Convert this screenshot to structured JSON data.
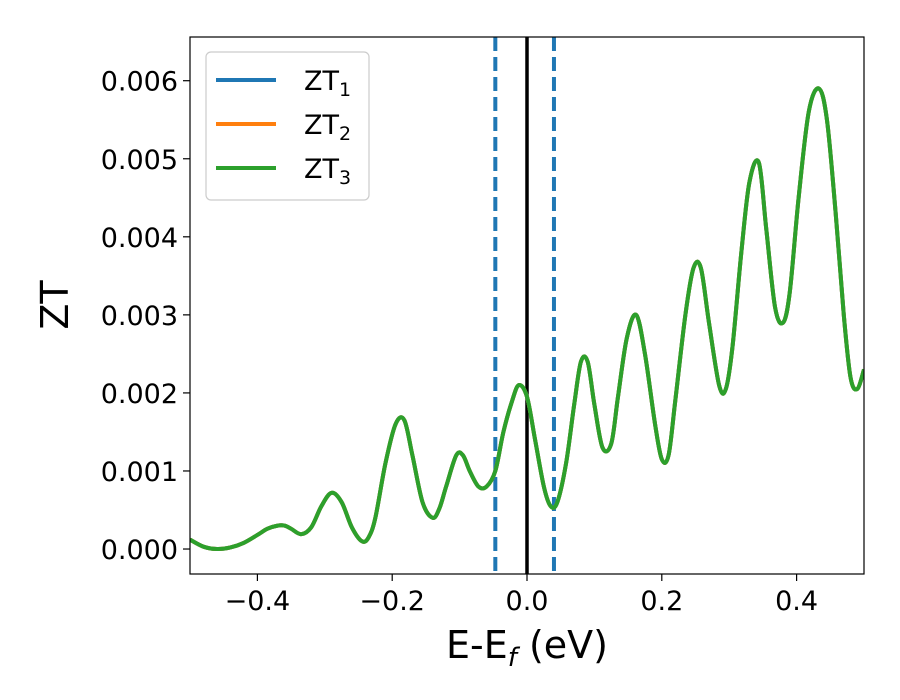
{
  "chart_data": {
    "type": "line",
    "xlabel": "E-E",
    "xlabel_sub": "f",
    "xlabel_unit": " (eV)",
    "ylabel": "ZT",
    "xlim": [
      -0.5,
      0.5
    ],
    "ylim": [
      -0.00032,
      0.00656
    ],
    "x_ticks": [
      -0.4,
      -0.2,
      0.0,
      0.2,
      0.4
    ],
    "x_tick_labels": [
      "−0.4",
      "−0.2",
      "0.0",
      "0.2",
      "0.4"
    ],
    "y_ticks": [
      0.0,
      0.001,
      0.002,
      0.003,
      0.004,
      0.005,
      0.006
    ],
    "y_tick_labels": [
      "0.000",
      "0.001",
      "0.002",
      "0.003",
      "0.004",
      "0.005",
      "0.006"
    ],
    "grid": false,
    "legend_position": "upper-left",
    "colors": {
      "series1": "#1f77b4",
      "series2": "#ff7f0e",
      "series3": "#2ca02c",
      "fermi_line": "#000000",
      "window_lines": "#1f77b4"
    },
    "vlines": [
      {
        "x": -0.047,
        "style": "dashed",
        "color": "#1f77b4"
      },
      {
        "x": 0.0,
        "style": "solid",
        "color": "#000000"
      },
      {
        "x": 0.04,
        "style": "dashed",
        "color": "#1f77b4"
      }
    ],
    "series": [
      {
        "name": "ZT",
        "sub": "1",
        "color": "#1f77b4"
      },
      {
        "name": "ZT",
        "sub": "2",
        "color": "#ff7f0e"
      },
      {
        "name": "ZT",
        "sub": "3",
        "color": "#2ca02c"
      }
    ],
    "x": [
      -0.5,
      -0.48,
      -0.46,
      -0.44,
      -0.42,
      -0.4,
      -0.385,
      -0.37,
      -0.36,
      -0.35,
      -0.335,
      -0.32,
      -0.305,
      -0.29,
      -0.275,
      -0.26,
      -0.245,
      -0.235,
      -0.225,
      -0.21,
      -0.195,
      -0.182,
      -0.17,
      -0.155,
      -0.14,
      -0.13,
      -0.12,
      -0.105,
      -0.095,
      -0.085,
      -0.072,
      -0.06,
      -0.047,
      -0.035,
      -0.022,
      -0.012,
      0.0,
      0.012,
      0.025,
      0.035,
      0.045,
      0.058,
      0.07,
      0.08,
      0.09,
      0.1,
      0.112,
      0.125,
      0.135,
      0.148,
      0.162,
      0.175,
      0.19,
      0.2,
      0.21,
      0.22,
      0.235,
      0.247,
      0.258,
      0.27,
      0.285,
      0.295,
      0.305,
      0.318,
      0.33,
      0.344,
      0.355,
      0.368,
      0.38,
      0.39,
      0.403,
      0.418,
      0.433,
      0.445,
      0.458,
      0.47,
      0.48,
      0.49,
      0.5
    ],
    "y": [
      0.00012,
      3e-05,
      0.0,
      2e-05,
      8e-05,
      0.00018,
      0.00026,
      0.0003,
      0.0003,
      0.00026,
      0.00019,
      0.00028,
      0.00055,
      0.00072,
      0.0006,
      0.00028,
      0.0001,
      0.00015,
      0.0004,
      0.0011,
      0.0016,
      0.00165,
      0.0012,
      0.0006,
      0.0004,
      0.00052,
      0.0008,
      0.0012,
      0.0012,
      0.001,
      0.0008,
      0.0008,
      0.001,
      0.0015,
      0.0019,
      0.0021,
      0.00195,
      0.0014,
      0.0008,
      0.00055,
      0.0006,
      0.0011,
      0.00185,
      0.0024,
      0.0024,
      0.00185,
      0.0013,
      0.00135,
      0.00195,
      0.0027,
      0.003,
      0.0025,
      0.0016,
      0.00115,
      0.0012,
      0.0019,
      0.003,
      0.0036,
      0.0036,
      0.0029,
      0.0021,
      0.00205,
      0.0026,
      0.0038,
      0.0047,
      0.00495,
      0.0041,
      0.0031,
      0.0029,
      0.0033,
      0.0045,
      0.0056,
      0.0059,
      0.0055,
      0.0043,
      0.003,
      0.0022,
      0.00205,
      0.0023
    ]
  }
}
